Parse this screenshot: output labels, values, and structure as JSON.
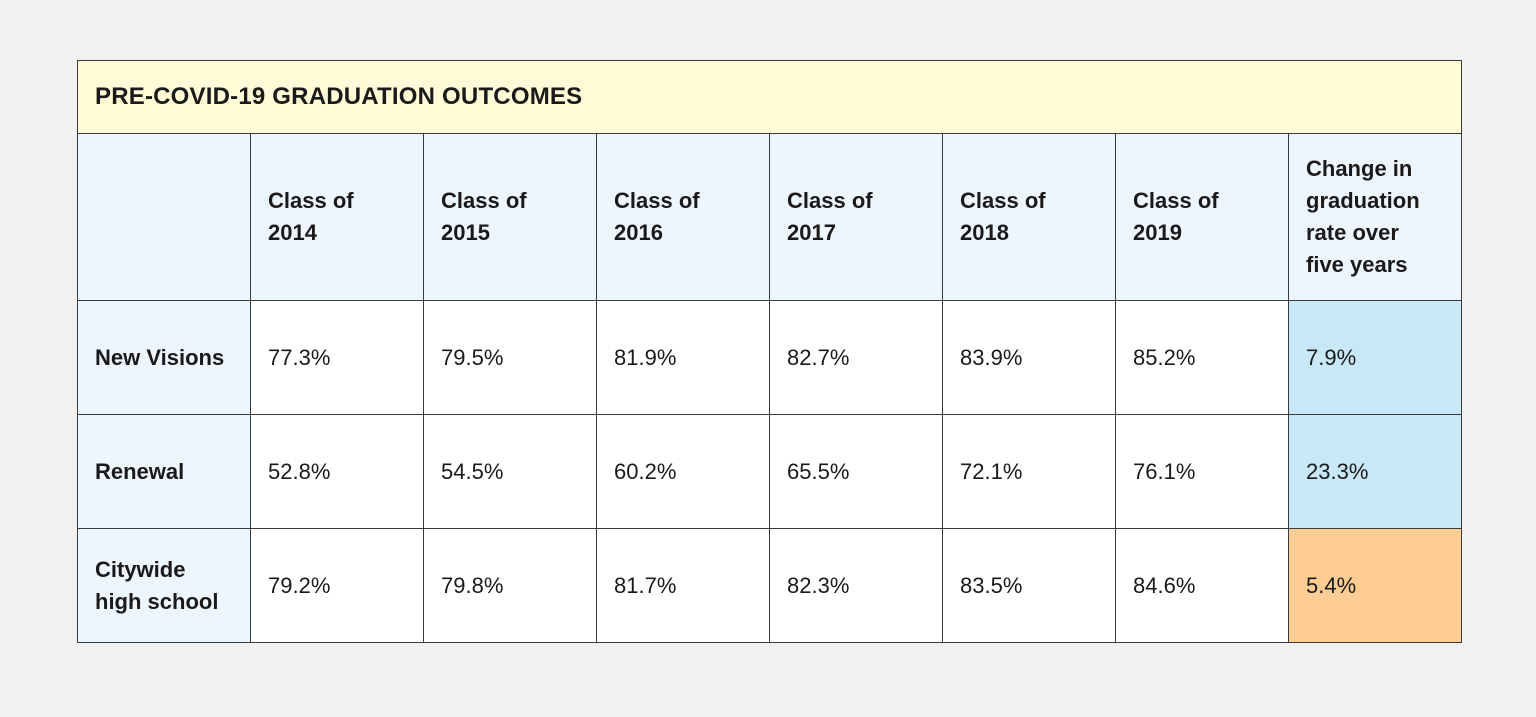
{
  "chart_data": {
    "type": "table",
    "title": "PRE-COVID-19 GRADUATION OUTCOMES",
    "columns": [
      "",
      "Class of 2014",
      "Class of 2015",
      "Class of 2016",
      "Class of 2017",
      "Class of 2018",
      "Class of 2019",
      "Change in graduation rate over five years"
    ],
    "rows": [
      {
        "label": "New Visions",
        "values": [
          "77.3%",
          "79.5%",
          "81.9%",
          "82.7%",
          "83.9%",
          "85.2%"
        ],
        "change": "7.9%",
        "change_color": "#c8e7f7"
      },
      {
        "label": "Renewal",
        "values": [
          "52.8%",
          "54.5%",
          "60.2%",
          "65.5%",
          "72.1%",
          "76.1%"
        ],
        "change": "23.3%",
        "change_color": "#c8e7f7"
      },
      {
        "label": "Citywide high school",
        "values": [
          "79.2%",
          "79.8%",
          "81.7%",
          "82.3%",
          "83.5%",
          "84.6%"
        ],
        "change": "5.4%",
        "change_color": "#fecd93"
      }
    ]
  },
  "colors": {
    "title_bg": "#fefbd6",
    "header_bg": "#eef6fd",
    "highlight_blue": "#c8e7f7",
    "highlight_orange": "#fecd93",
    "page_bg": "#f0f1f0"
  }
}
